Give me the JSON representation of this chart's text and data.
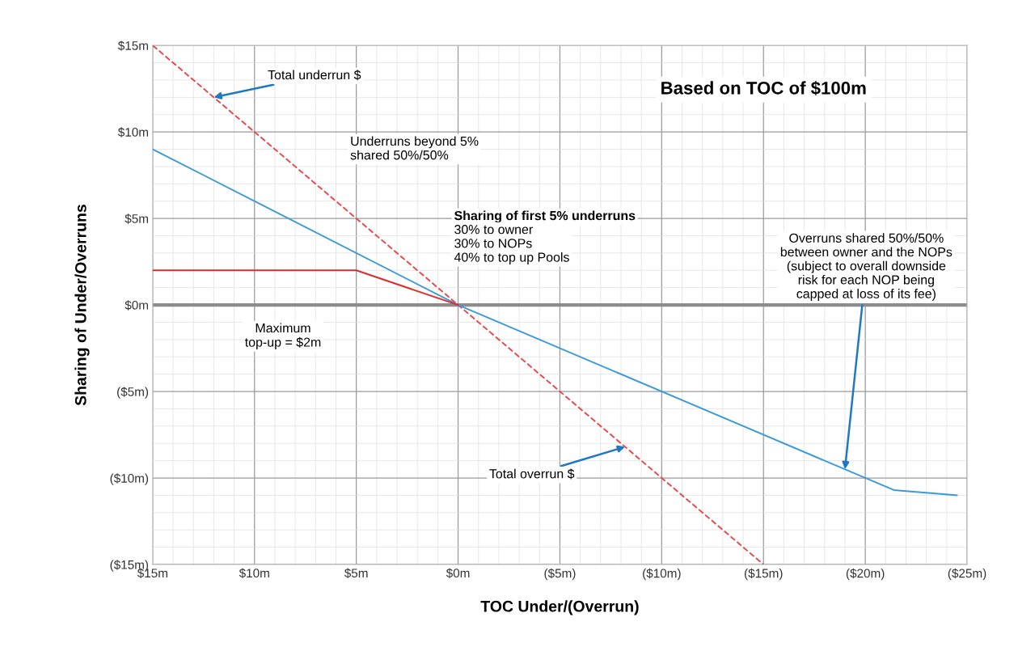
{
  "chart_data": {
    "type": "line",
    "title": "Based on TOC of $100m",
    "xlabel": "TOC Under/(Overrun)",
    "ylabel": "Sharing of Under/Overruns",
    "series": [
      {
        "color": "#e8494b",
        "line_style": "dashed",
        "x": [
          15,
          -15
        ],
        "values": [
          15,
          -15
        ]
      },
      {
        "color": "#3a9ad9",
        "line_style": "solid",
        "x": [
          15,
          0,
          -21.4,
          -24.5
        ],
        "values": [
          9,
          0,
          -10.7,
          -11
        ]
      },
      {
        "color": "#e02b2b",
        "line_style": "solid",
        "x": [
          15,
          5,
          0
        ],
        "values": [
          2,
          2,
          0
        ]
      }
    ],
    "xlim": [
      15,
      -25
    ],
    "ylim": [
      -15,
      15
    ],
    "xticks": [
      {
        "value": 15,
        "label": "$15m"
      },
      {
        "value": 10,
        "label": "$10m"
      },
      {
        "value": 5,
        "label": "$5m"
      },
      {
        "value": 0,
        "label": "$0m"
      },
      {
        "value": -5,
        "label": "($5m)"
      },
      {
        "value": -10,
        "label": "($10m)"
      },
      {
        "value": -15,
        "label": "($15m)"
      },
      {
        "value": -20,
        "label": "($20m)"
      },
      {
        "value": -25,
        "label": "($25m)"
      }
    ],
    "yticks": [
      {
        "value": 15,
        "label": "$15m"
      },
      {
        "value": 10,
        "label": "$10m"
      },
      {
        "value": 5,
        "label": "$5m"
      },
      {
        "value": 0,
        "label": "$0m"
      },
      {
        "value": -5,
        "label": "($5m)"
      },
      {
        "value": -10,
        "label": "($10m)"
      },
      {
        "value": -15,
        "label": "($15m)"
      }
    ],
    "ref_lines": [
      {
        "axis": "y",
        "value": 0,
        "label": null,
        "color": "#8c8c8c"
      }
    ],
    "grid": true,
    "marker": "none",
    "annotations": [
      {
        "text": "Total underrun $",
        "x": 12,
        "y": 12
      },
      "Underruns beyond 5%\nshared 50%/50%",
      "Sharing of first 5% underruns",
      "30% to owner\n30% to NOPs\n40% to top up Pools",
      "Maximum\ntop-up = $2m",
      {
        "text": "Total overrun $",
        "x": -8.2,
        "y": -8.2
      },
      {
        "text": "Overruns shared 50%/50%\nbetween owner and the NOPs\n(subject to overall downside\nrisk for each NOP being\ncapped at loss of its fee)",
        "x": -19,
        "y": -9.5
      }
    ]
  }
}
